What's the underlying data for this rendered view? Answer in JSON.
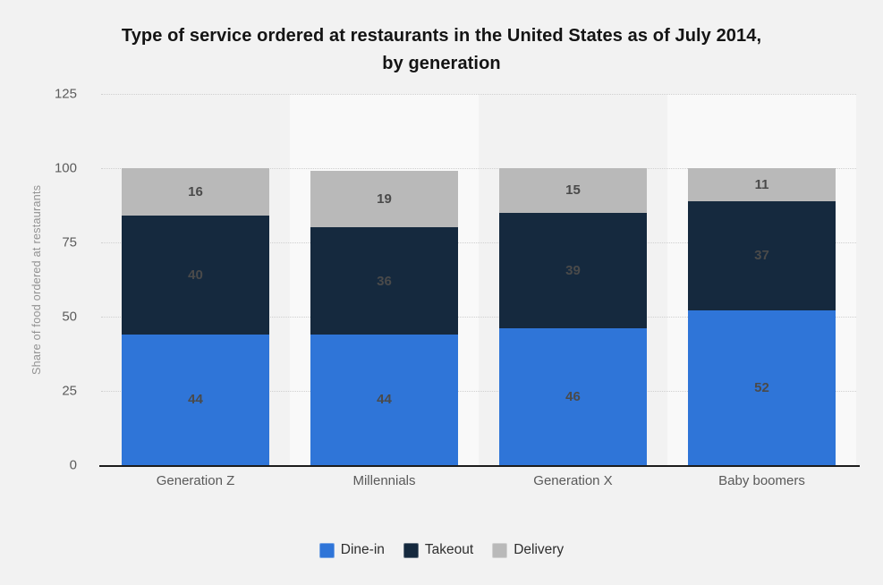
{
  "title_lines": [
    "Type of service ordered at restaurants in the United States as of July 2014,",
    "by generation"
  ],
  "chart_data": {
    "type": "bar",
    "stacked": true,
    "title": "Type of service ordered at restaurants in the United States as of July 2014, by generation",
    "ylabel": "Share of food ordered at restaurants",
    "xlabel": "",
    "ylim": [
      0,
      125
    ],
    "y_ticks": [
      0,
      25,
      50,
      75,
      100,
      125
    ],
    "grid": true,
    "legend_position": "bottom",
    "categories": [
      "Generation Z",
      "Millennials",
      "Generation X",
      "Baby boomers"
    ],
    "series": [
      {
        "name": "Dine-in",
        "color": "#2f75d8",
        "values": [
          44,
          44,
          46,
          52
        ]
      },
      {
        "name": "Takeout",
        "color": "#15293e",
        "values": [
          40,
          36,
          39,
          37
        ]
      },
      {
        "name": "Delivery",
        "color": "#b9b9b9",
        "values": [
          16,
          19,
          15,
          11
        ]
      }
    ]
  },
  "colors": {
    "page_background": "#f2f2f2",
    "column_band_light": "#f9f9f9",
    "gridline": "#cfcfcf",
    "axis_line": "#1c1c1c",
    "tick_text": "#5c5c5c",
    "value_label_text": "#4a4a4a",
    "title_text": "#141414"
  }
}
